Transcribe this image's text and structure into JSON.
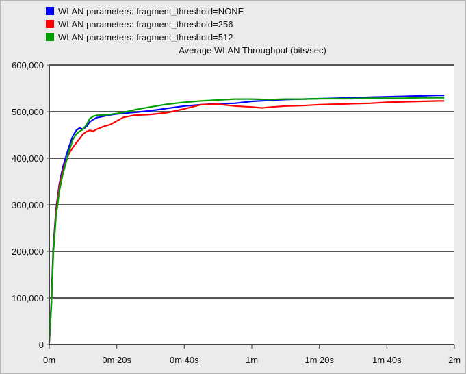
{
  "chart_data": {
    "type": "line",
    "title": "Average WLAN Throughput (bits/sec)",
    "xlabel": "",
    "ylabel": "",
    "x_unit": "seconds",
    "xlim": [
      0,
      120
    ],
    "ylim": [
      0,
      600000
    ],
    "x_ticks": [
      {
        "value": 0,
        "label": "0m"
      },
      {
        "value": 20,
        "label": "0m 20s"
      },
      {
        "value": 40,
        "label": "0m 40s"
      },
      {
        "value": 60,
        "label": "1m"
      },
      {
        "value": 80,
        "label": "1m 20s"
      },
      {
        "value": 100,
        "label": "1m 40s"
      },
      {
        "value": 120,
        "label": "2m"
      }
    ],
    "y_ticks": [
      {
        "value": 0,
        "label": "0"
      },
      {
        "value": 100000,
        "label": "100,000"
      },
      {
        "value": 200000,
        "label": "200,000"
      },
      {
        "value": 300000,
        "label": "300,000"
      },
      {
        "value": 400000,
        "label": "400,000"
      },
      {
        "value": 500000,
        "label": "500,000"
      },
      {
        "value": 600000,
        "label": "600,000"
      }
    ],
    "grid": "horizontal",
    "legend_position": "top-left",
    "series": [
      {
        "name": "WLAN parameters: fragment_threshold=NONE",
        "color": "#0000ff",
        "points": [
          [
            0,
            5000
          ],
          [
            0.6,
            90000
          ],
          [
            1.2,
            210000
          ],
          [
            2,
            290000
          ],
          [
            3,
            345000
          ],
          [
            4,
            380000
          ],
          [
            5,
            405000
          ],
          [
            6,
            428000
          ],
          [
            7,
            448000
          ],
          [
            8,
            460000
          ],
          [
            9,
            465000
          ],
          [
            10,
            462000
          ],
          [
            11,
            468000
          ],
          [
            12,
            478000
          ],
          [
            13,
            483000
          ],
          [
            14,
            487000
          ],
          [
            16,
            490000
          ],
          [
            18,
            493000
          ],
          [
            20,
            495000
          ],
          [
            23,
            497000
          ],
          [
            26,
            499000
          ],
          [
            30,
            502000
          ],
          [
            35,
            507000
          ],
          [
            40,
            512000
          ],
          [
            45,
            515000
          ],
          [
            50,
            517000
          ],
          [
            55,
            518000
          ],
          [
            60,
            522000
          ],
          [
            65,
            524000
          ],
          [
            70,
            526000
          ],
          [
            75,
            527000
          ],
          [
            80,
            528000
          ],
          [
            85,
            529000
          ],
          [
            90,
            530000
          ],
          [
            95,
            531000
          ],
          [
            100,
            532000
          ],
          [
            105,
            533000
          ],
          [
            110,
            534000
          ],
          [
            115,
            535000
          ],
          [
            117,
            535000
          ]
        ]
      },
      {
        "name": "WLAN parameters: fragment_threshold=256",
        "color": "#ff0000",
        "points": [
          [
            0,
            5000
          ],
          [
            0.6,
            85000
          ],
          [
            1.2,
            200000
          ],
          [
            2,
            285000
          ],
          [
            3,
            340000
          ],
          [
            4,
            372000
          ],
          [
            5,
            395000
          ],
          [
            6,
            412000
          ],
          [
            7,
            423000
          ],
          [
            8,
            433000
          ],
          [
            9,
            442000
          ],
          [
            10,
            452000
          ],
          [
            11,
            457000
          ],
          [
            12,
            460000
          ],
          [
            13,
            458000
          ],
          [
            14,
            462000
          ],
          [
            16,
            468000
          ],
          [
            18,
            472000
          ],
          [
            20,
            480000
          ],
          [
            22,
            488000
          ],
          [
            25,
            492000
          ],
          [
            30,
            494000
          ],
          [
            35,
            498000
          ],
          [
            40,
            506000
          ],
          [
            45,
            515000
          ],
          [
            50,
            516000
          ],
          [
            55,
            512000
          ],
          [
            60,
            510000
          ],
          [
            63,
            508000
          ],
          [
            66,
            510000
          ],
          [
            70,
            512000
          ],
          [
            75,
            513000
          ],
          [
            80,
            515000
          ],
          [
            85,
            516000
          ],
          [
            90,
            517000
          ],
          [
            95,
            518000
          ],
          [
            100,
            520000
          ],
          [
            105,
            521000
          ],
          [
            110,
            522000
          ],
          [
            115,
            523000
          ],
          [
            117,
            523000
          ]
        ]
      },
      {
        "name": "WLAN parameters: fragment_threshold=512",
        "color": "#00a000",
        "points": [
          [
            0,
            5000
          ],
          [
            0.6,
            80000
          ],
          [
            1.2,
            195000
          ],
          [
            2,
            275000
          ],
          [
            3,
            330000
          ],
          [
            4,
            365000
          ],
          [
            5,
            392000
          ],
          [
            6,
            418000
          ],
          [
            7,
            440000
          ],
          [
            8,
            452000
          ],
          [
            9,
            458000
          ],
          [
            10,
            462000
          ],
          [
            11,
            472000
          ],
          [
            12,
            485000
          ],
          [
            13,
            490000
          ],
          [
            14,
            492000
          ],
          [
            16,
            493000
          ],
          [
            18,
            494000
          ],
          [
            20,
            496000
          ],
          [
            23,
            500000
          ],
          [
            26,
            505000
          ],
          [
            30,
            510000
          ],
          [
            35,
            516000
          ],
          [
            40,
            520000
          ],
          [
            45,
            523000
          ],
          [
            50,
            525000
          ],
          [
            55,
            527000
          ],
          [
            60,
            527000
          ],
          [
            65,
            526000
          ],
          [
            70,
            527000
          ],
          [
            75,
            527000
          ],
          [
            80,
            528000
          ],
          [
            85,
            528000
          ],
          [
            90,
            528000
          ],
          [
            95,
            529000
          ],
          [
            100,
            529000
          ],
          [
            105,
            529000
          ],
          [
            110,
            530000
          ],
          [
            115,
            530000
          ],
          [
            117,
            530000
          ]
        ]
      }
    ]
  }
}
